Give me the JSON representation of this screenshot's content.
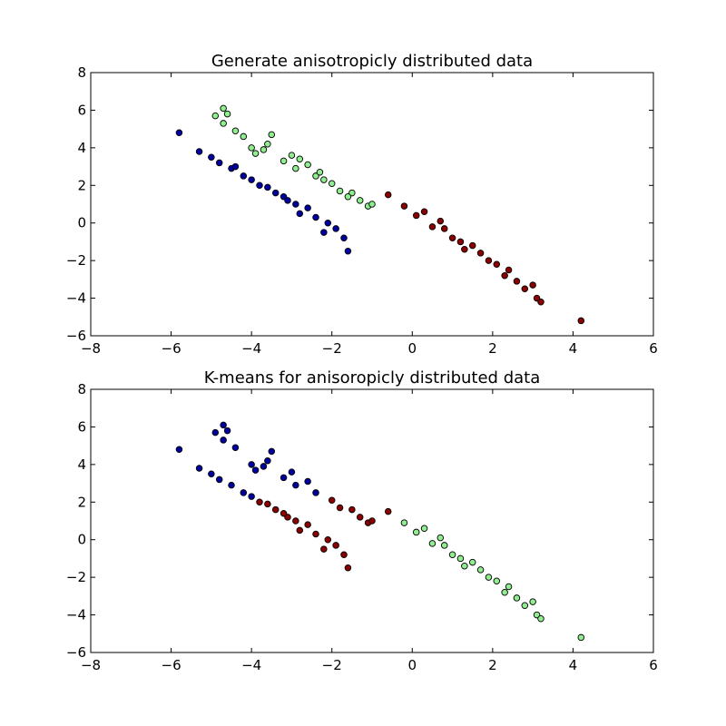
{
  "colors": {
    "cluster_a": "#0000a0",
    "cluster_b": "#90ee90",
    "cluster_c": "#8b0000",
    "edge": "#000000"
  },
  "chart_data": [
    {
      "type": "scatter",
      "title": "Generate anisotropicly distributed data",
      "xlabel": "",
      "ylabel": "",
      "xlim": [
        -8,
        6
      ],
      "ylim": [
        -6,
        8
      ],
      "xticks": [
        -8,
        -6,
        -4,
        -2,
        0,
        2,
        4,
        6
      ],
      "yticks": [
        -6,
        -4,
        -2,
        0,
        2,
        4,
        6,
        8
      ],
      "grid": false,
      "series": [
        {
          "color": "#90ee90",
          "x": [
            -4.7,
            -4.6,
            -4.9,
            -4.7,
            -4.4,
            -3.5,
            -4.0,
            -3.9,
            -3.7,
            -3.2,
            -3.0,
            -2.9,
            -2.6,
            -2.4,
            -2.3,
            -2.0,
            -1.8,
            -1.5,
            -1.3,
            -1.1,
            -1.0,
            -4.2,
            -3.6,
            -2.8,
            -2.2,
            -1.6
          ],
          "y": [
            6.1,
            5.8,
            5.7,
            5.3,
            4.9,
            4.7,
            4.0,
            3.7,
            3.9,
            3.3,
            3.6,
            2.9,
            3.1,
            2.5,
            2.7,
            2.1,
            1.7,
            1.6,
            1.2,
            0.9,
            1.0,
            4.6,
            4.2,
            3.4,
            2.3,
            1.4
          ]
        },
        {
          "color": "#0000a0",
          "x": [
            -5.8,
            -5.3,
            -5.0,
            -4.8,
            -4.5,
            -4.2,
            -4.0,
            -3.8,
            -3.6,
            -3.4,
            -3.1,
            -2.9,
            -2.6,
            -2.4,
            -2.1,
            -1.9,
            -1.7,
            -1.6,
            -4.4,
            -3.2,
            -2.8,
            -2.2
          ],
          "y": [
            4.8,
            3.8,
            3.5,
            3.2,
            2.9,
            2.5,
            2.3,
            2.0,
            1.9,
            1.6,
            1.2,
            1.0,
            0.8,
            0.3,
            0.0,
            -0.3,
            -0.8,
            -1.5,
            3.0,
            1.4,
            0.5,
            -0.5
          ]
        },
        {
          "color": "#8b0000",
          "x": [
            -0.6,
            -0.2,
            0.1,
            0.3,
            0.5,
            0.8,
            1.0,
            1.2,
            1.5,
            1.7,
            1.9,
            2.1,
            2.3,
            2.6,
            2.8,
            3.0,
            3.1,
            3.2,
            4.2,
            0.7,
            1.3,
            2.4
          ],
          "y": [
            1.5,
            0.9,
            0.4,
            0.6,
            -0.2,
            -0.3,
            -0.8,
            -1.0,
            -1.2,
            -1.6,
            -2.0,
            -2.2,
            -2.8,
            -3.1,
            -3.5,
            -3.3,
            -4.0,
            -4.2,
            -5.2,
            0.1,
            -1.4,
            -2.5
          ]
        }
      ]
    },
    {
      "type": "scatter",
      "title": "K-means for anisoropicly distributed data",
      "xlabel": "",
      "ylabel": "",
      "xlim": [
        -8,
        6
      ],
      "ylim": [
        -6,
        8
      ],
      "xticks": [
        -8,
        -6,
        -4,
        -2,
        0,
        2,
        4,
        6
      ],
      "yticks": [
        -6,
        -4,
        -2,
        0,
        2,
        4,
        6,
        8
      ],
      "grid": false,
      "series": [
        {
          "color": "#0000a0",
          "x": [
            -5.8,
            -5.3,
            -5.0,
            -4.8,
            -4.7,
            -4.6,
            -4.9,
            -4.7,
            -4.4,
            -4.5,
            -4.2,
            -4.0,
            -3.9,
            -3.7,
            -3.5,
            -3.2,
            -3.0,
            -2.9,
            -2.6,
            -2.4,
            -4.0,
            -3.6
          ],
          "y": [
            4.8,
            3.8,
            3.5,
            3.2,
            6.1,
            5.8,
            5.7,
            5.3,
            4.9,
            2.9,
            2.5,
            4.0,
            3.7,
            3.9,
            4.7,
            3.3,
            3.6,
            2.9,
            3.1,
            2.5,
            2.3,
            4.2
          ]
        },
        {
          "color": "#8b0000",
          "x": [
            -3.8,
            -3.6,
            -3.4,
            -3.1,
            -2.9,
            -2.6,
            -2.4,
            -2.1,
            -1.9,
            -1.7,
            -1.6,
            -2.0,
            -1.8,
            -1.5,
            -1.3,
            -1.1,
            -1.0,
            -0.6,
            -3.2,
            -2.8,
            -2.2
          ],
          "y": [
            2.0,
            1.9,
            1.6,
            1.2,
            1.0,
            0.8,
            0.3,
            0.0,
            -0.3,
            -0.8,
            -1.5,
            2.1,
            1.7,
            1.6,
            1.2,
            0.9,
            1.0,
            1.5,
            1.4,
            0.5,
            -0.5
          ]
        },
        {
          "color": "#90ee90",
          "x": [
            -0.2,
            0.1,
            0.3,
            0.5,
            0.8,
            1.0,
            1.2,
            1.5,
            1.7,
            1.9,
            2.1,
            2.3,
            2.6,
            2.8,
            3.0,
            3.1,
            3.2,
            4.2,
            0.7,
            1.3,
            2.4
          ],
          "y": [
            0.9,
            0.4,
            0.6,
            -0.2,
            -0.3,
            -0.8,
            -1.0,
            -1.2,
            -1.6,
            -2.0,
            -2.2,
            -2.8,
            -3.1,
            -3.5,
            -3.3,
            -4.0,
            -4.2,
            -5.2,
            0.1,
            -1.4,
            -2.5
          ]
        }
      ]
    }
  ]
}
